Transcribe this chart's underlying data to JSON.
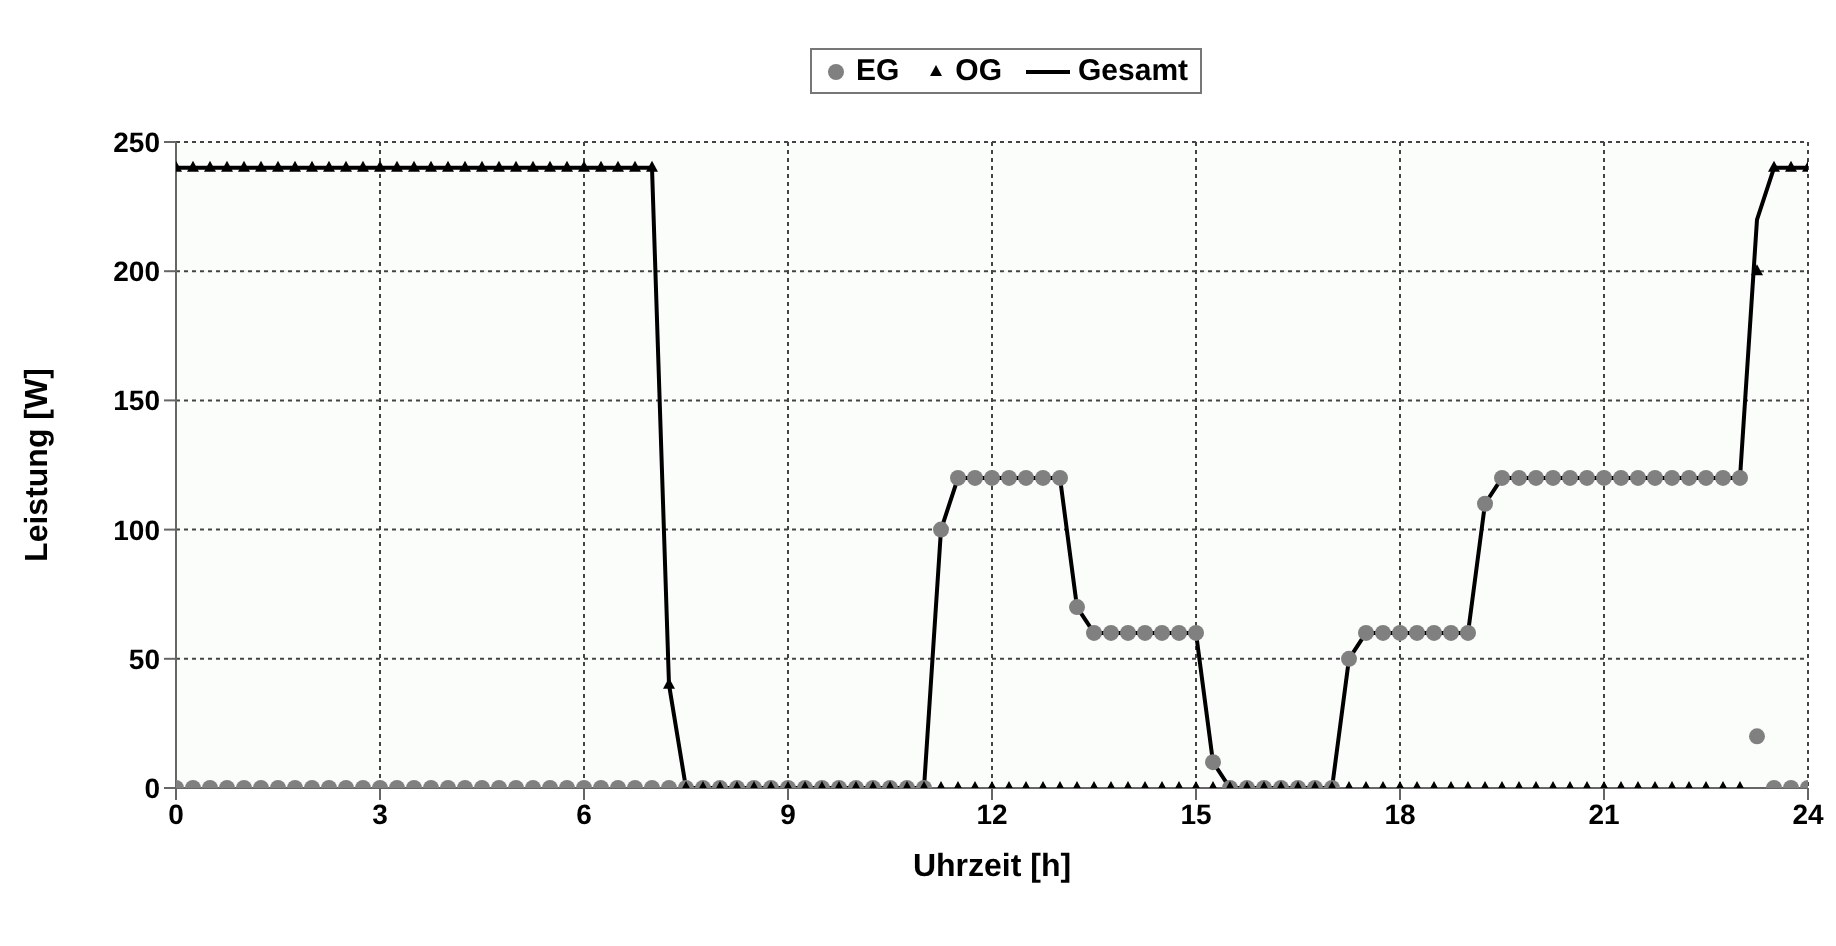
{
  "chart_data": {
    "type": "line",
    "xlabel": "Uhrzeit [h]",
    "ylabel": "Leistung [W]",
    "x": [
      0,
      0.25,
      0.5,
      0.75,
      1,
      1.25,
      1.5,
      1.75,
      2,
      2.25,
      2.5,
      2.75,
      3,
      3.25,
      3.5,
      3.75,
      4,
      4.25,
      4.5,
      4.75,
      5,
      5.25,
      5.5,
      5.75,
      6,
      6.25,
      6.5,
      6.75,
      7,
      7.25,
      7.5,
      7.75,
      8,
      8.25,
      8.5,
      8.75,
      9,
      9.25,
      9.5,
      9.75,
      10,
      10.25,
      10.5,
      10.75,
      11,
      11.25,
      11.5,
      11.75,
      12,
      12.25,
      12.5,
      12.75,
      13,
      13.25,
      13.5,
      13.75,
      14,
      14.25,
      14.5,
      14.75,
      15,
      15.25,
      15.5,
      15.75,
      16,
      16.25,
      16.5,
      16.75,
      17,
      17.25,
      17.5,
      17.75,
      18,
      18.25,
      18.5,
      18.75,
      19,
      19.25,
      19.5,
      19.75,
      20,
      20.25,
      20.5,
      20.75,
      21,
      21.25,
      21.5,
      21.75,
      22,
      22.25,
      22.5,
      22.75,
      23,
      23.25,
      23.5,
      23.75,
      24
    ],
    "series": [
      {
        "name": "EG",
        "type": "scatter",
        "marker": "circle",
        "color": "#808080",
        "values": [
          0,
          0,
          0,
          0,
          0,
          0,
          0,
          0,
          0,
          0,
          0,
          0,
          0,
          0,
          0,
          0,
          0,
          0,
          0,
          0,
          0,
          0,
          0,
          0,
          0,
          0,
          0,
          0,
          0,
          0,
          0,
          0,
          0,
          0,
          0,
          0,
          0,
          0,
          0,
          0,
          0,
          0,
          0,
          0,
          0,
          100,
          120,
          120,
          120,
          120,
          120,
          120,
          120,
          70,
          60,
          60,
          60,
          60,
          60,
          60,
          60,
          10,
          0,
          0,
          0,
          0,
          0,
          0,
          0,
          50,
          60,
          60,
          60,
          60,
          60,
          60,
          60,
          110,
          120,
          120,
          120,
          120,
          120,
          120,
          120,
          120,
          120,
          120,
          120,
          120,
          120,
          120,
          120,
          20,
          0,
          0,
          0
        ]
      },
      {
        "name": "OG",
        "type": "scatter",
        "marker": "triangle",
        "color": "#000000",
        "values": [
          240,
          240,
          240,
          240,
          240,
          240,
          240,
          240,
          240,
          240,
          240,
          240,
          240,
          240,
          240,
          240,
          240,
          240,
          240,
          240,
          240,
          240,
          240,
          240,
          240,
          240,
          240,
          240,
          240,
          40,
          0,
          0,
          0,
          0,
          0,
          0,
          0,
          0,
          0,
          0,
          0,
          0,
          0,
          0,
          0,
          0,
          0,
          0,
          0,
          0,
          0,
          0,
          0,
          0,
          0,
          0,
          0,
          0,
          0,
          0,
          0,
          0,
          0,
          0,
          0,
          0,
          0,
          0,
          0,
          0,
          0,
          0,
          0,
          0,
          0,
          0,
          0,
          0,
          0,
          0,
          0,
          0,
          0,
          0,
          0,
          0,
          0,
          0,
          0,
          0,
          0,
          0,
          0,
          200,
          240,
          240,
          240
        ]
      },
      {
        "name": "Gesamt",
        "marker": "none",
        "line_style": "solid",
        "color": "#000000",
        "values": [
          240,
          240,
          240,
          240,
          240,
          240,
          240,
          240,
          240,
          240,
          240,
          240,
          240,
          240,
          240,
          240,
          240,
          240,
          240,
          240,
          240,
          240,
          240,
          240,
          240,
          240,
          240,
          240,
          240,
          40,
          0,
          0,
          0,
          0,
          0,
          0,
          0,
          0,
          0,
          0,
          0,
          0,
          0,
          0,
          0,
          100,
          120,
          120,
          120,
          120,
          120,
          120,
          120,
          70,
          60,
          60,
          60,
          60,
          60,
          60,
          60,
          10,
          0,
          0,
          0,
          0,
          0,
          0,
          0,
          50,
          60,
          60,
          60,
          60,
          60,
          60,
          60,
          110,
          120,
          120,
          120,
          120,
          120,
          120,
          120,
          120,
          120,
          120,
          120,
          120,
          120,
          120,
          120,
          220,
          240,
          240,
          240
        ]
      }
    ],
    "xlim": [
      0,
      24
    ],
    "xticks": [
      0,
      3,
      6,
      9,
      12,
      15,
      18,
      21,
      24
    ],
    "ylim": [
      0,
      250
    ],
    "yticks": [
      0,
      50,
      100,
      150,
      200,
      250
    ],
    "grid": true,
    "legend": "top"
  }
}
